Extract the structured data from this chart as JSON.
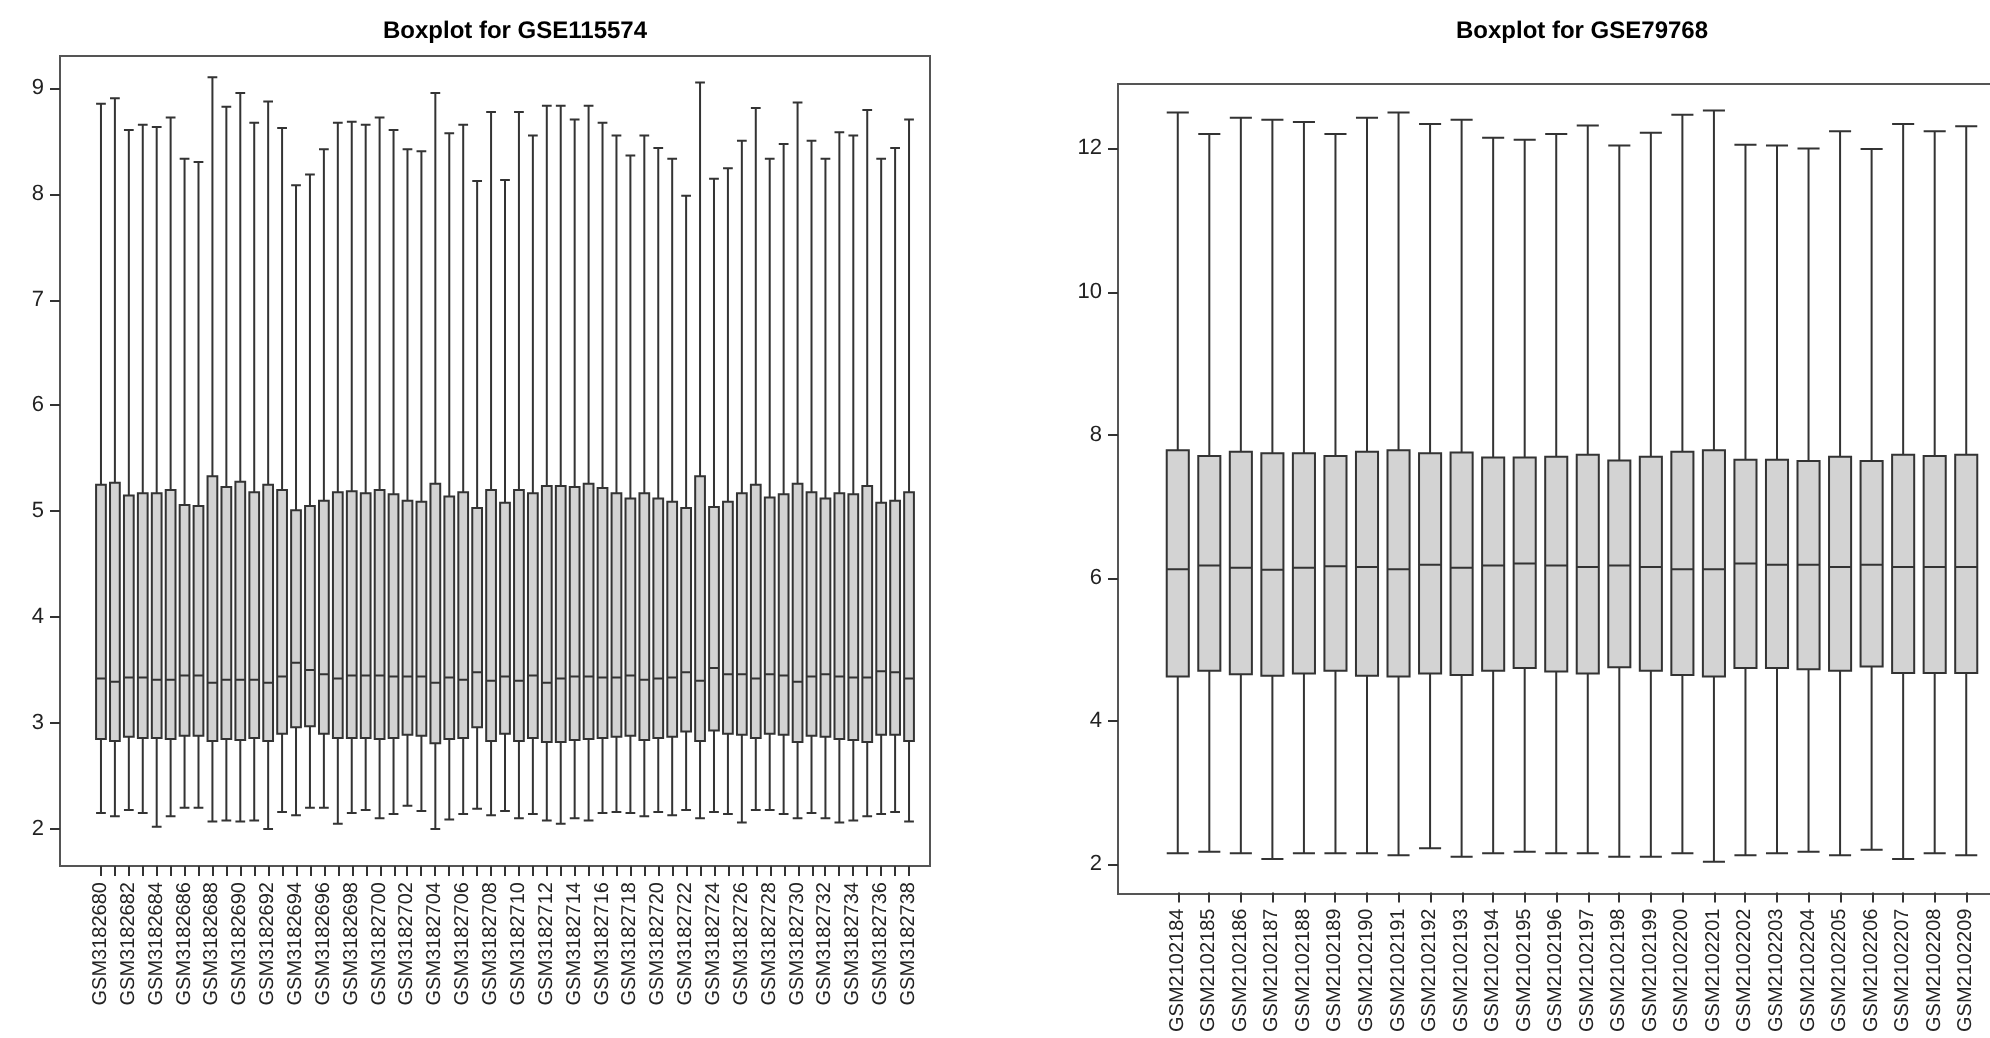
{
  "chart_data": [
    {
      "type": "box",
      "title": "Boxplot for GSE115574",
      "color": "#d3d3d3",
      "categories": [
        "GSM3182680",
        null,
        "GSM3182682",
        null,
        "GSM3182684",
        null,
        "GSM3182686",
        null,
        "GSM3182688",
        null,
        "GSM3182690",
        null,
        "GSM3182692",
        null,
        "GSM3182694",
        null,
        "GSM3182696",
        null,
        "GSM3182698",
        null,
        "GSM3182700",
        null,
        "GSM3182702",
        null,
        "GSM3182704",
        null,
        "GSM3182706",
        null,
        "GSM3182708",
        null,
        "GSM3182710",
        null,
        "GSM3182712",
        null,
        "GSM3182714",
        null,
        "GSM3182716",
        null,
        "GSM3182718",
        null,
        "GSM3182720",
        null,
        "GSM3182722",
        null,
        "GSM3182724",
        null,
        "GSM3182726",
        null,
        "GSM3182728",
        null,
        "GSM3182730",
        null,
        "GSM3182732",
        null,
        "GSM3182734",
        null,
        "GSM3182736",
        null,
        "GSM3182738"
      ],
      "boxes": [
        {
          "low": 2.15,
          "q1": 2.85,
          "median": 3.42,
          "q3": 5.25,
          "high": 8.85
        },
        {
          "low": 2.12,
          "q1": 2.83,
          "median": 3.39,
          "q3": 5.27,
          "high": 8.9
        },
        {
          "low": 2.18,
          "q1": 2.87,
          "median": 3.43,
          "q3": 5.15,
          "high": 8.6
        },
        {
          "low": 2.15,
          "q1": 2.86,
          "median": 3.43,
          "q3": 5.17,
          "high": 8.65
        },
        {
          "low": 2.02,
          "q1": 2.86,
          "median": 3.41,
          "q3": 5.17,
          "high": 8.63
        },
        {
          "low": 2.12,
          "q1": 2.85,
          "median": 3.41,
          "q3": 5.2,
          "high": 8.72
        },
        {
          "low": 2.2,
          "q1": 2.88,
          "median": 3.45,
          "q3": 5.06,
          "high": 8.33
        },
        {
          "low": 2.2,
          "q1": 2.88,
          "median": 3.45,
          "q3": 5.05,
          "high": 8.3
        },
        {
          "low": 2.07,
          "q1": 2.83,
          "median": 3.38,
          "q3": 5.33,
          "high": 9.1
        },
        {
          "low": 2.08,
          "q1": 2.85,
          "median": 3.41,
          "q3": 5.23,
          "high": 8.82
        },
        {
          "low": 2.07,
          "q1": 2.84,
          "median": 3.41,
          "q3": 5.28,
          "high": 8.95
        },
        {
          "low": 2.08,
          "q1": 2.86,
          "median": 3.41,
          "q3": 5.18,
          "high": 8.67
        },
        {
          "low": 2.0,
          "q1": 2.83,
          "median": 3.38,
          "q3": 5.25,
          "high": 8.87
        },
        {
          "low": 2.16,
          "q1": 2.9,
          "median": 3.44,
          "q3": 5.2,
          "high": 8.62
        },
        {
          "low": 2.13,
          "q1": 2.96,
          "median": 3.57,
          "q3": 5.01,
          "high": 8.08
        },
        {
          "low": 2.2,
          "q1": 2.97,
          "median": 3.5,
          "q3": 5.05,
          "high": 8.18
        },
        {
          "low": 2.2,
          "q1": 2.9,
          "median": 3.46,
          "q3": 5.1,
          "high": 8.42
        },
        {
          "low": 2.05,
          "q1": 2.86,
          "median": 3.42,
          "q3": 5.18,
          "high": 8.67
        },
        {
          "low": 2.15,
          "q1": 2.86,
          "median": 3.45,
          "q3": 5.19,
          "high": 8.68
        },
        {
          "low": 2.18,
          "q1": 2.86,
          "median": 3.45,
          "q3": 5.17,
          "high": 8.65
        },
        {
          "low": 2.1,
          "q1": 2.85,
          "median": 3.45,
          "q3": 5.2,
          "high": 8.72
        },
        {
          "low": 2.14,
          "q1": 2.86,
          "median": 3.44,
          "q3": 5.16,
          "high": 8.6
        },
        {
          "low": 2.22,
          "q1": 2.89,
          "median": 3.44,
          "q3": 5.1,
          "high": 8.42
        },
        {
          "low": 2.17,
          "q1": 2.88,
          "median": 3.44,
          "q3": 5.09,
          "high": 8.4
        },
        {
          "low": 2.0,
          "q1": 2.81,
          "median": 3.38,
          "q3": 5.26,
          "high": 8.95
        },
        {
          "low": 2.09,
          "q1": 2.85,
          "median": 3.43,
          "q3": 5.14,
          "high": 8.57
        },
        {
          "low": 2.14,
          "q1": 2.86,
          "median": 3.41,
          "q3": 5.18,
          "high": 8.65
        },
        {
          "low": 2.19,
          "q1": 2.96,
          "median": 3.48,
          "q3": 5.03,
          "high": 8.12
        },
        {
          "low": 2.13,
          "q1": 2.83,
          "median": 3.4,
          "q3": 5.2,
          "high": 8.77
        },
        {
          "low": 2.17,
          "q1": 2.9,
          "median": 3.44,
          "q3": 5.08,
          "high": 8.13
        },
        {
          "low": 2.1,
          "q1": 2.83,
          "median": 3.4,
          "q3": 5.2,
          "high": 8.77
        },
        {
          "low": 2.14,
          "q1": 2.86,
          "median": 3.45,
          "q3": 5.17,
          "high": 8.55
        },
        {
          "low": 2.08,
          "q1": 2.82,
          "median": 3.38,
          "q3": 5.24,
          "high": 8.83
        },
        {
          "low": 2.05,
          "q1": 2.82,
          "median": 3.42,
          "q3": 5.24,
          "high": 8.83
        },
        {
          "low": 2.1,
          "q1": 2.84,
          "median": 3.44,
          "q3": 5.23,
          "high": 8.7
        },
        {
          "low": 2.08,
          "q1": 2.85,
          "median": 3.44,
          "q3": 5.26,
          "high": 8.83
        },
        {
          "low": 2.15,
          "q1": 2.86,
          "median": 3.43,
          "q3": 5.22,
          "high": 8.67
        },
        {
          "low": 2.16,
          "q1": 2.87,
          "median": 3.43,
          "q3": 5.17,
          "high": 8.55
        },
        {
          "low": 2.15,
          "q1": 2.88,
          "median": 3.45,
          "q3": 5.12,
          "high": 8.36
        },
        {
          "low": 2.12,
          "q1": 2.84,
          "median": 3.41,
          "q3": 5.17,
          "high": 8.55
        },
        {
          "low": 2.16,
          "q1": 2.86,
          "median": 3.42,
          "q3": 5.12,
          "high": 8.43
        },
        {
          "low": 2.13,
          "q1": 2.87,
          "median": 3.43,
          "q3": 5.09,
          "high": 8.33
        },
        {
          "low": 2.18,
          "q1": 2.92,
          "median": 3.48,
          "q3": 5.03,
          "high": 7.98
        },
        {
          "low": 2.1,
          "q1": 2.83,
          "median": 3.4,
          "q3": 5.33,
          "high": 9.05
        },
        {
          "low": 2.16,
          "q1": 2.93,
          "median": 3.52,
          "q3": 5.04,
          "high": 8.14
        },
        {
          "low": 2.14,
          "q1": 2.9,
          "median": 3.46,
          "q3": 5.09,
          "high": 8.24
        },
        {
          "low": 2.06,
          "q1": 2.89,
          "median": 3.46,
          "q3": 5.17,
          "high": 8.5
        },
        {
          "low": 2.18,
          "q1": 2.86,
          "median": 3.42,
          "q3": 5.25,
          "high": 8.81
        },
        {
          "low": 2.18,
          "q1": 2.9,
          "median": 3.46,
          "q3": 5.13,
          "high": 8.33
        },
        {
          "low": 2.14,
          "q1": 2.89,
          "median": 3.45,
          "q3": 5.16,
          "high": 8.47
        },
        {
          "low": 2.1,
          "q1": 2.82,
          "median": 3.39,
          "q3": 5.26,
          "high": 8.86
        },
        {
          "low": 2.15,
          "q1": 2.88,
          "median": 3.44,
          "q3": 5.18,
          "high": 8.5
        },
        {
          "low": 2.1,
          "q1": 2.87,
          "median": 3.46,
          "q3": 5.12,
          "high": 8.33
        },
        {
          "low": 2.06,
          "q1": 2.85,
          "median": 3.44,
          "q3": 5.17,
          "high": 8.58
        },
        {
          "low": 2.08,
          "q1": 2.84,
          "median": 3.43,
          "q3": 5.16,
          "high": 8.55
        },
        {
          "low": 2.12,
          "q1": 2.82,
          "median": 3.43,
          "q3": 5.24,
          "high": 8.79
        },
        {
          "low": 2.14,
          "q1": 2.89,
          "median": 3.49,
          "q3": 5.08,
          "high": 8.33
        },
        {
          "low": 2.16,
          "q1": 2.89,
          "median": 3.48,
          "q3": 5.1,
          "high": 8.43
        },
        {
          "low": 2.07,
          "q1": 2.83,
          "median": 3.42,
          "q3": 5.18,
          "high": 8.7
        }
      ],
      "ylim": [
        1.65,
        9.3
      ],
      "yticks": [
        2,
        3,
        4,
        5,
        6,
        7,
        8,
        9
      ]
    },
    {
      "type": "box",
      "title": "Boxplot for GSE79768",
      "color": "#d3d3d3",
      "categories": [
        "GSM2102184",
        "GSM2102185",
        "GSM2102186",
        "GSM2102187",
        "GSM2102188",
        "GSM2102189",
        "GSM2102190",
        "GSM2102191",
        "GSM2102192",
        "GSM2102193",
        "GSM2102194",
        "GSM2102195",
        "GSM2102196",
        "GSM2102197",
        "GSM2102198",
        "GSM2102199",
        "GSM2102200",
        "GSM2102201",
        "GSM2102202",
        "GSM2102203",
        "GSM2102204",
        "GSM2102205",
        "GSM2102206",
        "GSM2102207",
        "GSM2102208",
        "GSM2102209"
      ],
      "boxes": [
        {
          "low": 2.15,
          "q1": 4.62,
          "median": 6.12,
          "q3": 7.78,
          "high": 12.5
        },
        {
          "low": 2.17,
          "q1": 4.7,
          "median": 6.17,
          "q3": 7.7,
          "high": 12.2
        },
        {
          "low": 2.15,
          "q1": 4.65,
          "median": 6.14,
          "q3": 7.76,
          "high": 12.43
        },
        {
          "low": 2.07,
          "q1": 4.63,
          "median": 6.11,
          "q3": 7.74,
          "high": 12.4
        },
        {
          "low": 2.15,
          "q1": 4.66,
          "median": 6.14,
          "q3": 7.74,
          "high": 12.37
        },
        {
          "low": 2.15,
          "q1": 4.7,
          "median": 6.16,
          "q3": 7.7,
          "high": 12.2
        },
        {
          "low": 2.15,
          "q1": 4.63,
          "median": 6.15,
          "q3": 7.76,
          "high": 12.43
        },
        {
          "low": 2.12,
          "q1": 4.62,
          "median": 6.12,
          "q3": 7.78,
          "high": 12.5
        },
        {
          "low": 2.22,
          "q1": 4.66,
          "median": 6.18,
          "q3": 7.74,
          "high": 12.34
        },
        {
          "low": 2.1,
          "q1": 4.64,
          "median": 6.14,
          "q3": 7.75,
          "high": 12.4
        },
        {
          "low": 2.15,
          "q1": 4.7,
          "median": 6.17,
          "q3": 7.68,
          "high": 12.15
        },
        {
          "low": 2.17,
          "q1": 4.74,
          "median": 6.2,
          "q3": 7.68,
          "high": 12.12
        },
        {
          "low": 2.15,
          "q1": 4.69,
          "median": 6.17,
          "q3": 7.69,
          "high": 12.2
        },
        {
          "low": 2.15,
          "q1": 4.66,
          "median": 6.15,
          "q3": 7.72,
          "high": 12.32
        },
        {
          "low": 2.1,
          "q1": 4.75,
          "median": 6.17,
          "q3": 7.64,
          "high": 12.04
        },
        {
          "low": 2.1,
          "q1": 4.7,
          "median": 6.15,
          "q3": 7.69,
          "high": 12.22
        },
        {
          "low": 2.15,
          "q1": 4.64,
          "median": 6.12,
          "q3": 7.76,
          "high": 12.47
        },
        {
          "low": 2.03,
          "q1": 4.62,
          "median": 6.12,
          "q3": 7.78,
          "high": 12.53
        },
        {
          "low": 2.12,
          "q1": 4.74,
          "median": 6.2,
          "q3": 7.65,
          "high": 12.05
        },
        {
          "low": 2.15,
          "q1": 4.74,
          "median": 6.18,
          "q3": 7.65,
          "high": 12.04
        },
        {
          "low": 2.17,
          "q1": 4.72,
          "median": 6.18,
          "q3": 7.63,
          "high": 12.0
        },
        {
          "low": 2.12,
          "q1": 4.7,
          "median": 6.15,
          "q3": 7.69,
          "high": 12.24
        },
        {
          "low": 2.2,
          "q1": 4.76,
          "median": 6.18,
          "q3": 7.63,
          "high": 11.99
        },
        {
          "low": 2.07,
          "q1": 4.67,
          "median": 6.15,
          "q3": 7.72,
          "high": 12.34
        },
        {
          "low": 2.15,
          "q1": 4.67,
          "median": 6.15,
          "q3": 7.7,
          "high": 12.24
        },
        {
          "low": 2.12,
          "q1": 4.67,
          "median": 6.15,
          "q3": 7.72,
          "high": 12.31
        }
      ],
      "ylim": [
        1.6,
        12.9
      ],
      "yticks": [
        2,
        4,
        6,
        8,
        10,
        12
      ]
    }
  ]
}
